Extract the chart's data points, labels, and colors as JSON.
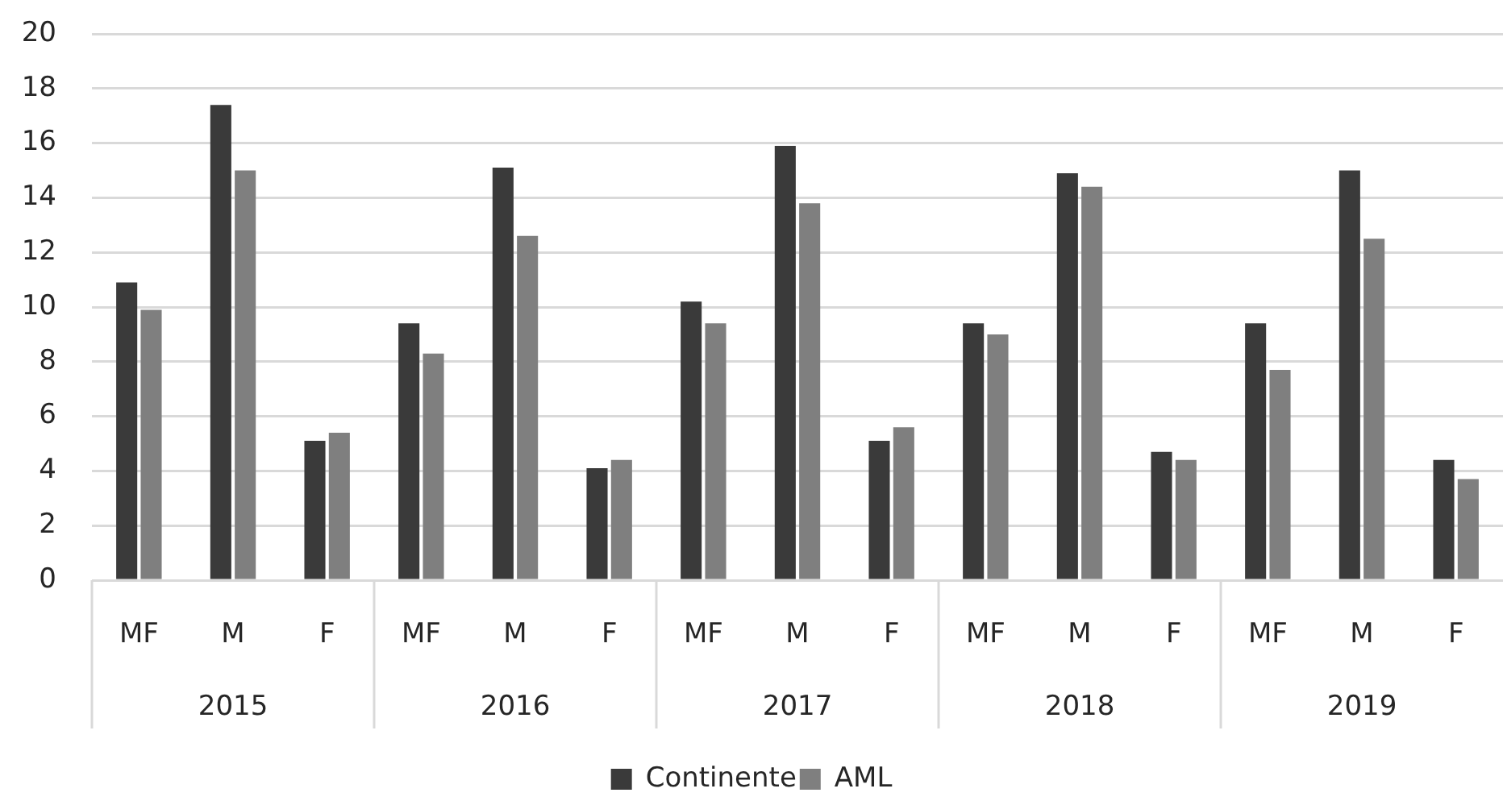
{
  "chart_data": {
    "type": "bar",
    "categories": [
      "MF",
      "M",
      "F",
      "MF",
      "M",
      "F",
      "MF",
      "M",
      "F",
      "MF",
      "M",
      "F",
      "MF",
      "M",
      "F"
    ],
    "annotations": [
      "2015",
      "2016",
      "2017",
      "2018",
      "2019"
    ],
    "series": [
      {
        "name": "Continente",
        "color": "#3a3a3a",
        "values": [
          10.9,
          17.4,
          5.1,
          9.4,
          15.1,
          4.1,
          10.2,
          15.9,
          5.1,
          9.4,
          14.9,
          4.7,
          9.4,
          15.0,
          4.4
        ]
      },
      {
        "name": "AML",
        "color": "#7f7f7f",
        "values": [
          9.9,
          15.0,
          5.4,
          8.3,
          12.6,
          4.4,
          9.4,
          13.8,
          5.6,
          9.0,
          14.4,
          4.4,
          7.7,
          12.5,
          3.7
        ]
      }
    ],
    "ylim": [
      0,
      20
    ],
    "yticks": [
      0,
      2,
      4,
      6,
      8,
      10,
      12,
      14,
      16,
      18,
      20
    ],
    "grid": "y",
    "legend": "bottom"
  }
}
